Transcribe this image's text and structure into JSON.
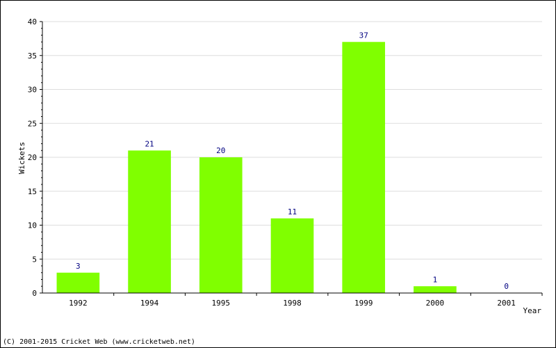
{
  "chart_data": {
    "type": "bar",
    "categories": [
      "1992",
      "1994",
      "1995",
      "1998",
      "1999",
      "2000",
      "2001"
    ],
    "values": [
      3,
      21,
      20,
      11,
      37,
      1,
      0
    ],
    "data_labels": [
      "3",
      "21",
      "20",
      "11",
      "37",
      "1",
      "0"
    ],
    "xlabel": "Year",
    "ylabel": "Wickets",
    "ylim": [
      0,
      40
    ],
    "yticks": [
      0,
      5,
      10,
      15,
      20,
      25,
      30,
      35,
      40
    ],
    "grid": true,
    "bar_color": "#80ff00",
    "grid_color": "#dddddd",
    "data_label_color": "#000080"
  },
  "footer": {
    "copyright": "(C) 2001-2015 Cricket Web (www.cricketweb.net)"
  }
}
